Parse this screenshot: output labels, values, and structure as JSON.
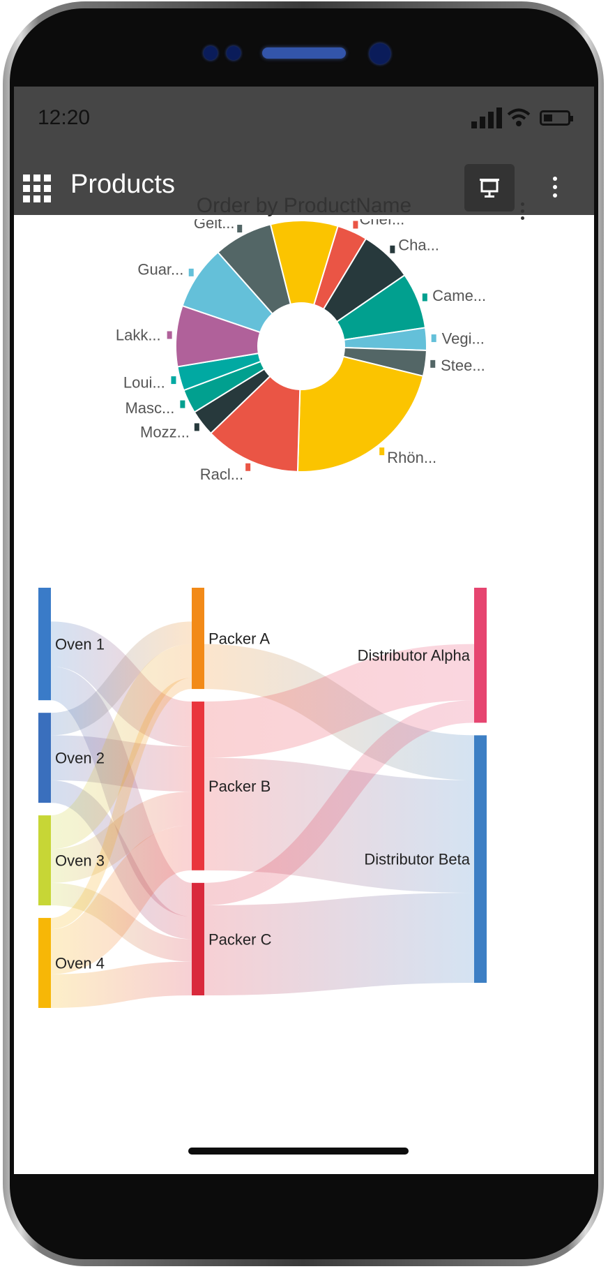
{
  "status_bar": {
    "time": "12:20"
  },
  "app_bar": {
    "title": "Products",
    "icons": [
      "grid-icon",
      "present-icon",
      "more-vertical-icon"
    ]
  },
  "pie_chart_card": {
    "menu_icon": "more-vertical-icon"
  },
  "chart_data": [
    {
      "type": "pie",
      "title": "Order by ProductName",
      "donut": true,
      "slices": [
        {
          "label": "Chef...",
          "value": 3.8,
          "color": "#ea5545"
        },
        {
          "label": "Cha...",
          "value": 6.6,
          "color": "#27393c"
        },
        {
          "label": "Came...",
          "value": 7.0,
          "color": "#01a08f"
        },
        {
          "label": "Vegi...",
          "value": 2.8,
          "color": "#64c0d9"
        },
        {
          "label": "Stee...",
          "value": 3.2,
          "color": "#536666"
        },
        {
          "label": "Rhön...",
          "value": 21.0,
          "color": "#fbc400"
        },
        {
          "label": "Racl...",
          "value": 12.0,
          "color": "#ea5545"
        },
        {
          "label": "Mozz...",
          "value": 3.3,
          "color": "#27393c"
        },
        {
          "label": "Masc...",
          "value": 3.0,
          "color": "#01a08f"
        },
        {
          "label": "Loui...",
          "value": 3.0,
          "color": "#01a9a2"
        },
        {
          "label": "Lakk...",
          "value": 7.6,
          "color": "#b0619a"
        },
        {
          "label": "Guar...",
          "value": 8.0,
          "color": "#64c0d9"
        },
        {
          "label": "Geit...",
          "value": 7.4,
          "color": "#536666"
        },
        {
          "label": "",
          "value": 8.4,
          "color": "#fbc400"
        }
      ]
    },
    {
      "type": "sankey",
      "nodes": [
        {
          "name": "Oven 1",
          "column": 0,
          "color": "#3a7bc8"
        },
        {
          "name": "Oven 2",
          "column": 0,
          "color": "#3a6fbd"
        },
        {
          "name": "Oven 3",
          "column": 0,
          "color": "#c7d636"
        },
        {
          "name": "Oven 4",
          "column": 0,
          "color": "#f7b707"
        },
        {
          "name": "Packer A",
          "column": 1,
          "color": "#f28a18"
        },
        {
          "name": "Packer B",
          "column": 1,
          "color": "#e9353c"
        },
        {
          "name": "Packer C",
          "column": 1,
          "color": "#d9293c"
        },
        {
          "name": "Distributor Alpha",
          "column": 2,
          "color": "#e64570"
        },
        {
          "name": "Distributor Beta",
          "column": 2,
          "color": "#3d7fc4"
        }
      ],
      "links": [
        {
          "source": "Oven 1",
          "target": "Packer A",
          "value": 3
        },
        {
          "source": "Oven 1",
          "target": "Packer B",
          "value": 4
        },
        {
          "source": "Oven 1",
          "target": "Packer C",
          "value": 3
        },
        {
          "source": "Oven 2",
          "target": "Packer A",
          "value": 2
        },
        {
          "source": "Oven 2",
          "target": "Packer B",
          "value": 4
        },
        {
          "source": "Oven 2",
          "target": "Packer C",
          "value": 2
        },
        {
          "source": "Oven 3",
          "target": "Packer A",
          "value": 3
        },
        {
          "source": "Oven 3",
          "target": "Packer B",
          "value": 3
        },
        {
          "source": "Oven 3",
          "target": "Packer C",
          "value": 2
        },
        {
          "source": "Oven 4",
          "target": "Packer A",
          "value": 1
        },
        {
          "source": "Oven 4",
          "target": "Packer B",
          "value": 4
        },
        {
          "source": "Oven 4",
          "target": "Packer C",
          "value": 3
        },
        {
          "source": "Packer A",
          "target": "Distributor Alpha",
          "value": 5
        },
        {
          "source": "Packer A",
          "target": "Distributor Beta",
          "value": 4
        },
        {
          "source": "Packer B",
          "target": "Distributor Alpha",
          "value": 5
        },
        {
          "source": "Packer B",
          "target": "Distributor Beta",
          "value": 10
        },
        {
          "source": "Packer C",
          "target": "Distributor Alpha",
          "value": 2
        },
        {
          "source": "Packer C",
          "target": "Distributor Beta",
          "value": 8
        }
      ]
    }
  ]
}
